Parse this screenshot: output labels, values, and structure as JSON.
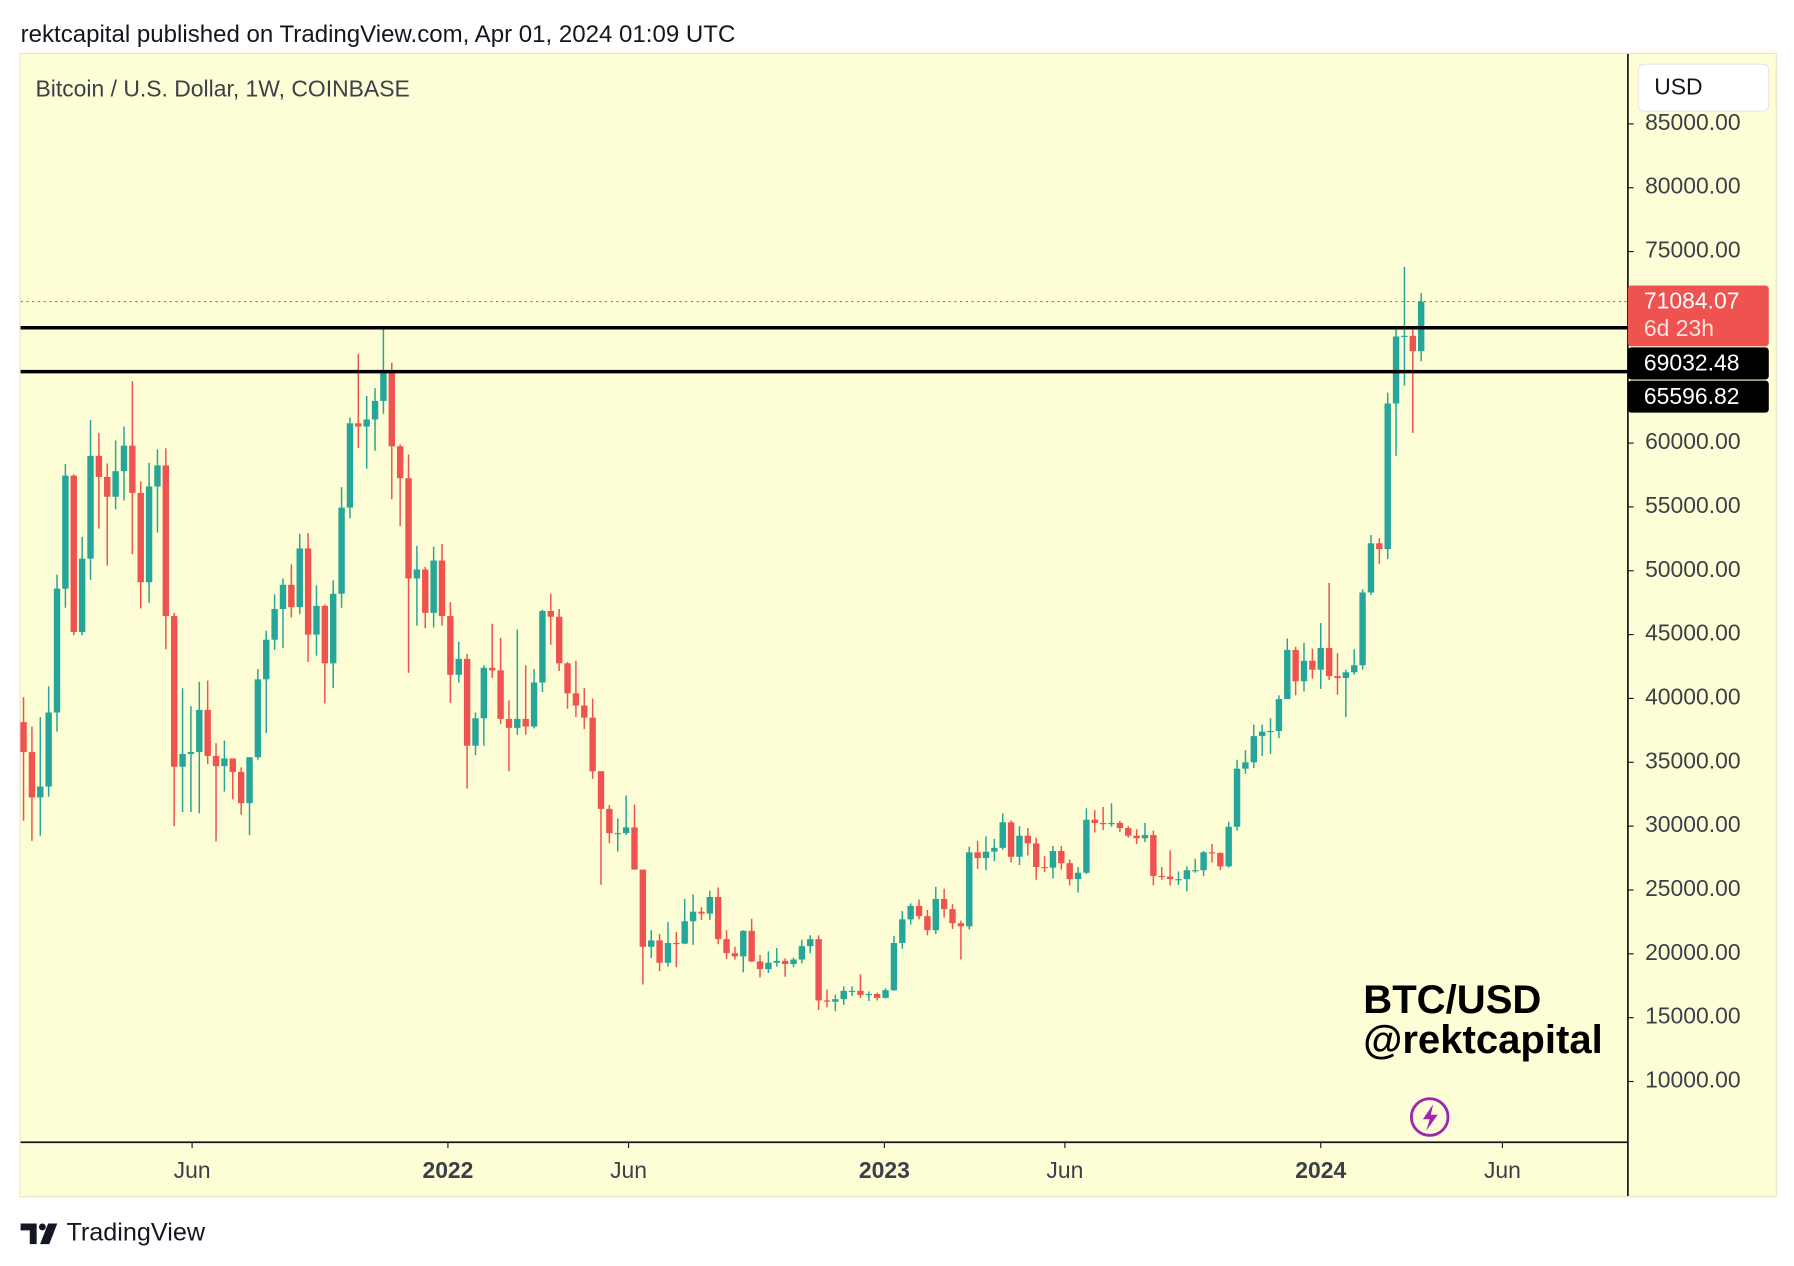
{
  "header": {
    "published": "rektcapital published on TradingView.com, Apr 01, 2024 01:09 UTC"
  },
  "chart_data": {
    "type": "candlestick",
    "title": "Bitcoin / U.S. Dollar, 1W, COINBASE",
    "currency": "USD",
    "up_color": "#26a69a",
    "down_color": "#ef5350",
    "xlim": [
      -0.35,
      191.7
    ],
    "xticks": [
      {
        "value": 20.14,
        "label": "Jun"
      },
      {
        "value": 50.71,
        "label": "2022"
      },
      {
        "value": 72.29,
        "label": "Jun"
      },
      {
        "value": 102.86,
        "label": "2023"
      },
      {
        "value": 124.43,
        "label": "Jun"
      },
      {
        "value": 155,
        "label": "2024"
      },
      {
        "value": 176.71,
        "label": "Jun"
      }
    ],
    "ylim": [
      5245,
      90480
    ],
    "yticks": [
      {
        "value": 10000,
        "label": "10000.00"
      },
      {
        "value": 15000,
        "label": "15000.00"
      },
      {
        "value": 20000,
        "label": "20000.00"
      },
      {
        "value": 25000,
        "label": "25000.00"
      },
      {
        "value": 30000,
        "label": "30000.00"
      },
      {
        "value": 35000,
        "label": "35000.00"
      },
      {
        "value": 40000,
        "label": "40000.00"
      },
      {
        "value": 45000,
        "label": "45000.00"
      },
      {
        "value": 50000,
        "label": "50000.00"
      },
      {
        "value": 55000,
        "label": "55000.00"
      },
      {
        "value": 60000,
        "label": "60000.00"
      },
      {
        "value": 75000,
        "label": "75000.00"
      },
      {
        "value": 80000,
        "label": "80000.00"
      },
      {
        "value": 85000,
        "label": "85000.00"
      }
    ],
    "open": [
      38150,
      35800,
      32250,
      33100,
      38900,
      48600,
      57450,
      45200,
      50950,
      59000,
      57350,
      55800,
      57800,
      59800,
      56100,
      49100,
      56600,
      58250,
      46450,
      34650,
      35650,
      35800,
      39100,
      35500,
      34700,
      35300,
      34250,
      31800,
      35400,
      41500,
      44600,
      47000,
      48900,
      47150,
      51750,
      45000,
      47250,
      42750,
      48200,
      54950,
      61550,
      61300,
      61850,
      63300,
      65500,
      59750,
      57250,
      49400,
      50100,
      46700,
      50800,
      46450,
      41850,
      43100,
      36300,
      38450,
      42400,
      42200,
      38400,
      37700,
      38400,
      37800,
      41250,
      46850,
      46400,
      42750,
      40400,
      39450,
      38500,
      34300,
      31350,
      29450,
      29450,
      29900,
      26600,
      20550,
      21050,
      19300,
      20850,
      20800,
      22550,
      23300,
      23150,
      24450,
      21150,
      20050,
      19800,
      21800,
      19400,
      18800,
      19300,
      19450,
      19200,
      19550,
      20600,
      21150,
      16350,
      16250,
      16450,
      17100,
      17100,
      16780,
      16850,
      16550,
      17150,
      20850,
      22700,
      23750,
      22950,
      21850,
      24300,
      23500,
      22400,
      22150,
      27950,
      27500,
      28000,
      28300,
      30300,
      27600,
      29250,
      28650,
      26800,
      26750,
      28050,
      27100,
      25850,
      26350,
      30500,
      30250,
      30150,
      30250,
      29850,
      29250,
      29050,
      29300,
      26100,
      26050,
      25850,
      25850,
      26550,
      26550,
      27950,
      27900,
      26850,
      29950,
      34500,
      35000,
      37050,
      37400,
      37450,
      39950,
      43800,
      41350,
      42950,
      42250,
      43950,
      41750,
      41600,
      42050,
      42600,
      48300,
      52150,
      51700,
      63100,
      68350,
      68400,
      67200
    ],
    "high": [
      40100,
      37800,
      38550,
      40950,
      49700,
      58350,
      57550,
      52650,
      61800,
      60800,
      58400,
      60200,
      61300,
      64850,
      57000,
      58450,
      59500,
      59600,
      46700,
      40800,
      39400,
      41300,
      41400,
      36500,
      36700,
      35300,
      34600,
      35400,
      42300,
      45300,
      48150,
      49400,
      50500,
      52900,
      52950,
      48850,
      47350,
      49250,
      56550,
      62000,
      67000,
      63700,
      64300,
      69000,
      66300,
      59900,
      59100,
      51950,
      50300,
      51900,
      52100,
      47550,
      44450,
      43500,
      38900,
      42600,
      45850,
      44750,
      39850,
      45400,
      42600,
      42300,
      46950,
      48200,
      47000,
      42850,
      42950,
      40800,
      40000,
      34300,
      31650,
      30600,
      32400,
      31700,
      26600,
      21850,
      21550,
      22500,
      21700,
      24300,
      24650,
      23650,
      24950,
      25200,
      21850,
      20550,
      21850,
      22750,
      19900,
      20200,
      20450,
      19650,
      19700,
      21100,
      21450,
      21450,
      17200,
      16800,
      17450,
      17450,
      18400,
      17050,
      16950,
      17300,
      21400,
      23350,
      23950,
      24250,
      23450,
      25250,
      25100,
      23900,
      22600,
      28400,
      28850,
      29200,
      29000,
      31000,
      30450,
      30000,
      29850,
      29100,
      27650,
      28450,
      28450,
      27400,
      26800,
      31400,
      31250,
      31500,
      31800,
      30400,
      30000,
      29750,
      30250,
      29650,
      26800,
      28100,
      26450,
      26850,
      27450,
      28050,
      28600,
      27950,
      30350,
      35200,
      35950,
      37950,
      37950,
      38450,
      40250,
      44700,
      44050,
      44350,
      43900,
      45900,
      49050,
      43550,
      42250,
      43850,
      48550,
      52800,
      52550,
      63950,
      69000,
      73800,
      68950,
      71750
    ],
    "low": [
      30420,
      28850,
      29250,
      32300,
      37400,
      47100,
      44950,
      44950,
      49300,
      53300,
      50400,
      54800,
      55500,
      51300,
      47050,
      47500,
      53000,
      43850,
      30000,
      31100,
      31100,
      31000,
      34850,
      28800,
      32700,
      32100,
      30900,
      29300,
      35200,
      37300,
      43800,
      43950,
      46350,
      46600,
      42850,
      43350,
      39600,
      40800,
      47100,
      54100,
      59600,
      58000,
      59400,
      62300,
      55600,
      53500,
      42000,
      45700,
      45500,
      45550,
      45700,
      39650,
      41250,
      32950,
      35550,
      36300,
      41600,
      38000,
      34300,
      37150,
      37150,
      37650,
      40500,
      44200,
      42150,
      39200,
      38550,
      37600,
      33700,
      25400,
      28650,
      28000,
      29300,
      26600,
      17600,
      19650,
      18650,
      19000,
      18950,
      20750,
      20700,
      22650,
      22650,
      20750,
      19600,
      19550,
      18550,
      19350,
      18150,
      18500,
      19000,
      18200,
      18950,
      19250,
      20050,
      15600,
      15800,
      15500,
      16000,
      16700,
      16550,
      16300,
      16350,
      16500,
      17100,
      20400,
      22300,
      22700,
      21450,
      21550,
      22850,
      21950,
      19550,
      21900,
      26650,
      26550,
      27250,
      28150,
      27150,
      26950,
      27700,
      25800,
      26400,
      25900,
      26600,
      25350,
      24800,
      26250,
      29500,
      29700,
      29950,
      29550,
      29100,
      28600,
      28750,
      25350,
      25800,
      25350,
      25400,
      24900,
      26350,
      26100,
      27150,
      26550,
      26750,
      29650,
      34100,
      34550,
      35500,
      35650,
      36900,
      39950,
      40250,
      40550,
      41550,
      40750,
      41450,
      40300,
      38550,
      41850,
      42250,
      48100,
      50550,
      50900,
      59000,
      64500,
      60800,
      66400
    ],
    "close": [
      35800,
      32250,
      33100,
      38900,
      48600,
      57450,
      45200,
      50950,
      59000,
      57350,
      55800,
      57800,
      59800,
      56100,
      49100,
      56600,
      58250,
      46450,
      34650,
      35650,
      35800,
      39100,
      35500,
      34700,
      35300,
      34250,
      31800,
      35400,
      41500,
      44600,
      47000,
      48900,
      47150,
      51750,
      45000,
      47250,
      42750,
      48200,
      54950,
      61550,
      61300,
      61850,
      63300,
      65500,
      59750,
      57250,
      49400,
      50100,
      46700,
      50800,
      46450,
      41850,
      43100,
      36300,
      38450,
      42400,
      42200,
      38400,
      37700,
      38400,
      37800,
      41250,
      46850,
      46400,
      42750,
      40400,
      39450,
      38500,
      34300,
      31350,
      29450,
      29450,
      29900,
      26600,
      20550,
      21050,
      19300,
      20850,
      20800,
      22550,
      23300,
      23150,
      24450,
      21150,
      20050,
      19800,
      21800,
      19400,
      18800,
      19300,
      19450,
      19200,
      19550,
      20600,
      21150,
      16350,
      16250,
      16450,
      17100,
      17100,
      16780,
      16850,
      16550,
      17150,
      20850,
      22700,
      23750,
      22950,
      21850,
      24300,
      23500,
      22400,
      22150,
      27950,
      27500,
      28000,
      28300,
      30300,
      27600,
      29250,
      28650,
      26800,
      26750,
      28050,
      27100,
      25850,
      26350,
      30500,
      30250,
      30150,
      30250,
      29850,
      29250,
      29050,
      29300,
      26100,
      26050,
      25850,
      25850,
      26550,
      26550,
      27950,
      27900,
      26850,
      29950,
      34500,
      35000,
      37050,
      37400,
      37450,
      39950,
      43800,
      41350,
      42950,
      42250,
      43950,
      41750,
      41600,
      42050,
      42600,
      48300,
      52150,
      51700,
      63100,
      68350,
      68400,
      67200,
      71084.07
    ],
    "countdown": "6d 23h",
    "levels": [
      69032.48,
      65596.82
    ],
    "level_color": "#000000",
    "watermark": [
      "BTC/USD",
      "@rektcapital"
    ]
  },
  "footer": {
    "brand": "TradingView"
  }
}
